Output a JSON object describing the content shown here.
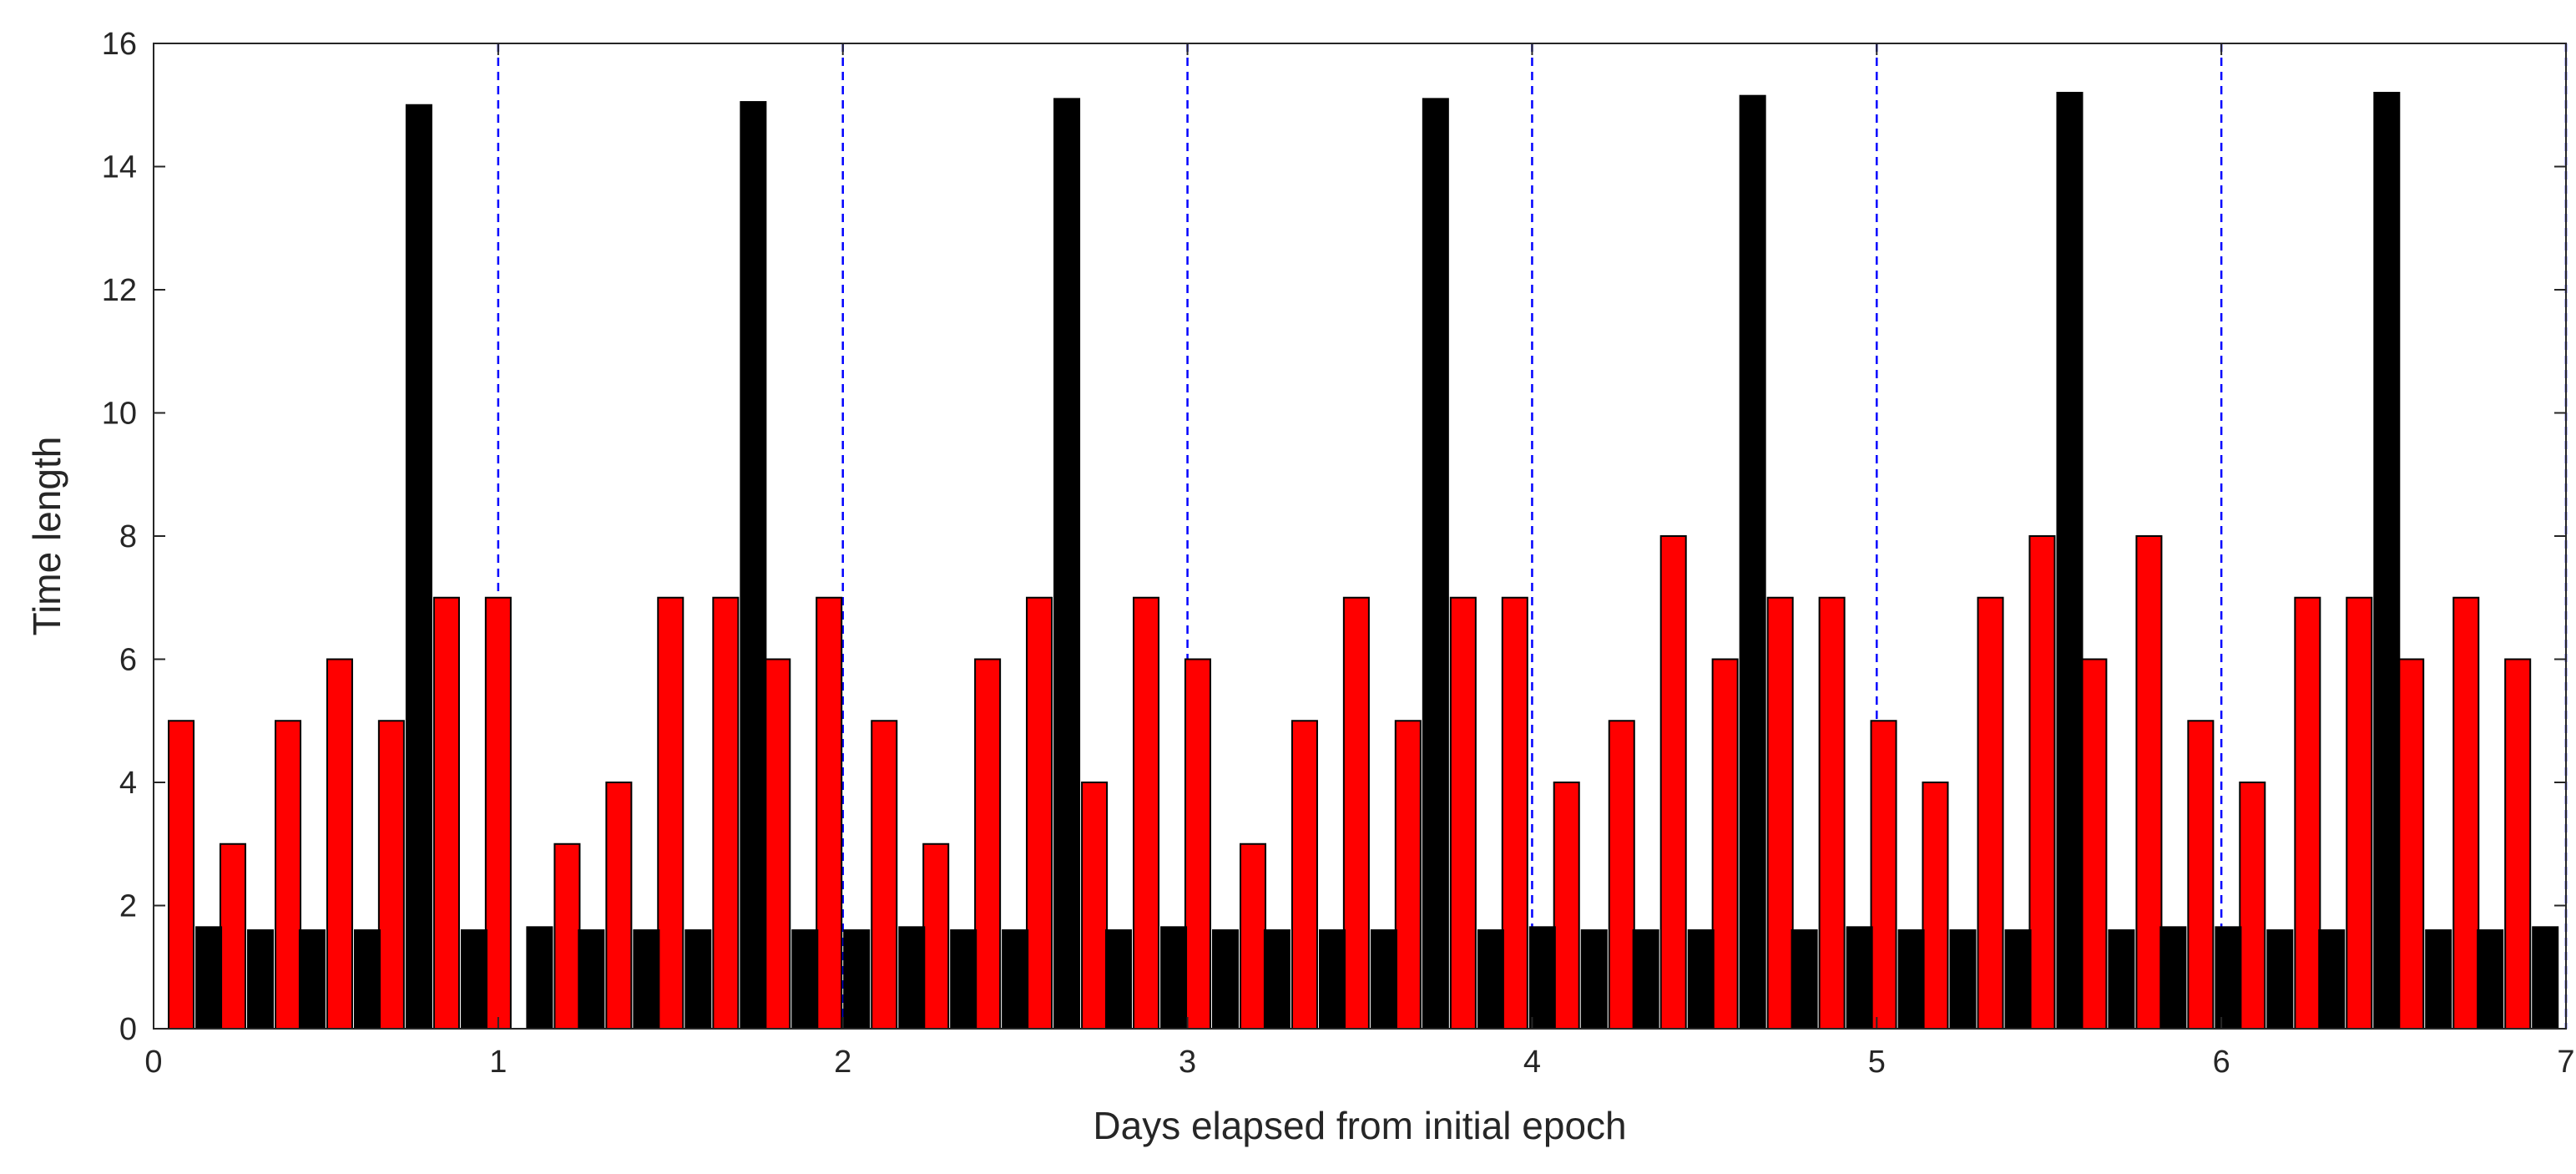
{
  "chart_data": {
    "type": "bar",
    "title": "",
    "xlabel": "Days elapsed from initial epoch",
    "ylabel": "Time length",
    "xlim": [
      0,
      7
    ],
    "ylim": [
      0,
      16
    ],
    "xticks": [
      0,
      1,
      2,
      3,
      4,
      5,
      6,
      7
    ],
    "yticks": [
      0,
      2,
      4,
      6,
      8,
      10,
      12,
      14,
      16
    ],
    "grid": false,
    "legend": "none",
    "bar_width_days": 0.0727,
    "reference_lines": {
      "x": [
        1,
        2,
        3,
        4,
        5,
        6,
        7
      ],
      "color": "#0000FF",
      "style": "dashed"
    },
    "series": [
      {
        "color": "#FF0000",
        "x": [
          0.08,
          0.23,
          0.39,
          0.54,
          0.69,
          0.85,
          1.0,
          1.2,
          1.35,
          1.5,
          1.66,
          1.81,
          1.96,
          2.12,
          2.27,
          2.42,
          2.57,
          2.73,
          2.88,
          3.03,
          3.19,
          3.34,
          3.49,
          3.64,
          3.8,
          3.95,
          4.1,
          4.26,
          4.41,
          4.56,
          4.72,
          4.87,
          5.02,
          5.17,
          5.33,
          5.48,
          5.63,
          5.79,
          5.94,
          6.09,
          6.25,
          6.4,
          6.55,
          6.71,
          6.86
        ],
        "values": [
          5,
          3,
          5,
          6,
          5,
          7,
          7,
          3,
          4,
          7,
          7,
          6,
          7,
          5,
          3,
          6,
          7,
          4,
          7,
          6,
          3,
          5,
          7,
          5,
          7,
          7,
          4,
          5,
          8,
          6,
          7,
          7,
          5,
          4,
          7,
          8,
          6,
          8,
          5,
          4,
          7,
          7,
          6,
          7,
          6
        ]
      },
      {
        "color": "#000000",
        "x": [
          0.16,
          0.31,
          0.46,
          0.62,
          0.77,
          0.93,
          1.12,
          1.27,
          1.43,
          1.58,
          1.74,
          1.89,
          2.04,
          2.2,
          2.35,
          2.5,
          2.65,
          2.8,
          2.96,
          3.11,
          3.26,
          3.42,
          3.57,
          3.72,
          3.88,
          4.03,
          4.18,
          4.33,
          4.49,
          4.64,
          4.79,
          4.95,
          5.1,
          5.25,
          5.41,
          5.56,
          5.71,
          5.86,
          6.02,
          6.17,
          6.32,
          6.48,
          6.63,
          6.78,
          6.94
        ],
        "values": [
          1.65,
          1.6,
          1.6,
          1.6,
          15.0,
          1.6,
          1.65,
          1.6,
          1.6,
          1.6,
          15.05,
          1.6,
          1.6,
          1.65,
          1.6,
          1.6,
          15.1,
          1.6,
          1.65,
          1.6,
          1.6,
          1.6,
          1.6,
          15.1,
          1.6,
          1.65,
          1.6,
          1.6,
          1.6,
          15.15,
          1.6,
          1.65,
          1.6,
          1.6,
          1.6,
          15.2,
          1.6,
          1.65,
          1.65,
          1.6,
          1.6,
          15.2,
          1.6,
          1.6,
          1.65
        ]
      }
    ]
  }
}
